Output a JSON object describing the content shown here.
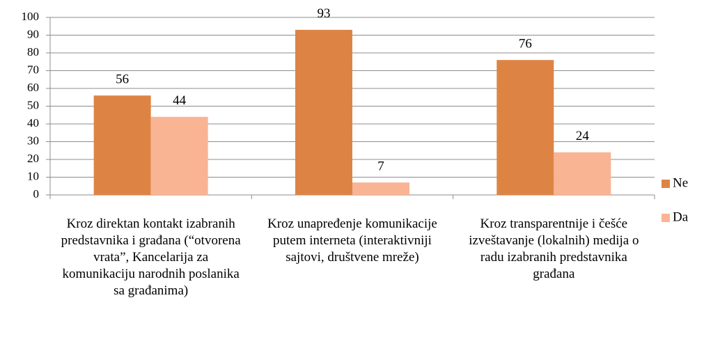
{
  "chart_data": {
    "type": "bar",
    "categories": [
      "Kroz direktan kontakt izabranih predstavnika i građana (“otvorena vrata”, Kancelarija za komunikaciju narodnih poslanika sa građanima)",
      "Kroz unapređenje komunikacije putem interneta (interaktivniji sajtovi, društvene mreže)",
      "Kroz transparentnije i češće izveštavanje (lokalnih) medija o radu izabranih predstavnika građana"
    ],
    "series": [
      {
        "name": "Ne",
        "color": "#dd8445",
        "values": [
          56,
          93,
          76
        ]
      },
      {
        "name": "Da",
        "color": "#f9b493",
        "values": [
          44,
          7,
          24
        ]
      }
    ],
    "ylim": [
      0,
      100
    ],
    "yticks": [
      0,
      10,
      20,
      30,
      40,
      50,
      60,
      70,
      80,
      90,
      100
    ],
    "grid": true,
    "legend": "right"
  }
}
